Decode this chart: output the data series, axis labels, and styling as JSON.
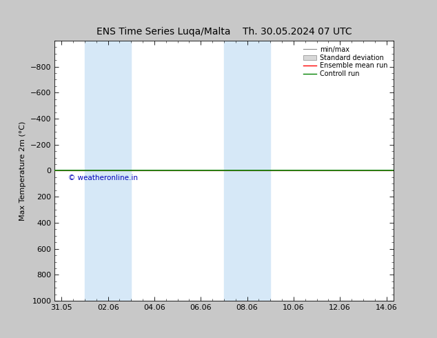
{
  "title_left": "ENS Time Series Luqa/Malta",
  "title_right": "Th. 30.05.2024 07 UTC",
  "ylabel": "Max Temperature 2m (°C)",
  "ylim_top": -1000,
  "ylim_bottom": 1000,
  "yticks": [
    -800,
    -600,
    -400,
    -200,
    0,
    200,
    400,
    600,
    800,
    1000
  ],
  "xtick_labels": [
    "31.05",
    "02.06",
    "04.06",
    "06.06",
    "08.06",
    "10.06",
    "12.06",
    "14.06"
  ],
  "xtick_positions": [
    0,
    2,
    4,
    6,
    8,
    10,
    12,
    14
  ],
  "xlim": [
    -0.3,
    14.3
  ],
  "shaded_bands": [
    {
      "xstart": 1,
      "xend": 3
    },
    {
      "xstart": 7,
      "xend": 9
    }
  ],
  "shaded_color": "#d6e8f7",
  "line_color_ensemble": "#ff0000",
  "line_color_control": "#008000",
  "line_color_minmax": "#888888",
  "watermark": "© weatheronline.in",
  "watermark_color": "#0000bb",
  "legend_items": [
    "min/max",
    "Standard deviation",
    "Ensemble mean run",
    "Controll run"
  ],
  "legend_colors_line": [
    "#888888",
    "#bbbbbb",
    "#ff0000",
    "#008000"
  ],
  "bg_color": "#c8c8c8",
  "plot_bg_color": "#ffffff",
  "font_size": 8,
  "title_font_size": 10
}
